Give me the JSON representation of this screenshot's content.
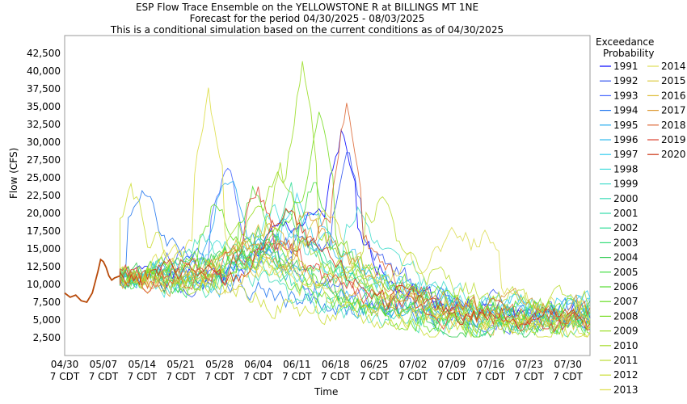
{
  "chart_data": {
    "type": "line",
    "title": "ESP Flow Trace Ensemble on the YELLOWSTONE R at BILLINGS MT 1NE",
    "subtitle1": "Forecast for the period 04/30/2025 - 08/03/2025",
    "subtitle2": "This is a conditional simulation based on the current conditions as of 04/30/2025",
    "xlabel": "Time",
    "ylabel": "Flow (CFS)",
    "ylim": [
      0,
      45000
    ],
    "yticks": [
      "2,500",
      "5,000",
      "7,500",
      "10,000",
      "12,500",
      "15,000",
      "17,500",
      "20,000",
      "22,500",
      "25,000",
      "27,500",
      "30,000",
      "32,500",
      "35,000",
      "37,500",
      "40,000",
      "42,500"
    ],
    "xticks": [
      {
        "d": "04/30",
        "t": "7 CDT"
      },
      {
        "d": "05/07",
        "t": "7 CDT"
      },
      {
        "d": "05/14",
        "t": "7 CDT"
      },
      {
        "d": "05/21",
        "t": "7 CDT"
      },
      {
        "d": "05/28",
        "t": "7 CDT"
      },
      {
        "d": "06/04",
        "t": "7 CDT"
      },
      {
        "d": "06/11",
        "t": "7 CDT"
      },
      {
        "d": "06/18",
        "t": "7 CDT"
      },
      {
        "d": "06/25",
        "t": "7 CDT"
      },
      {
        "d": "07/02",
        "t": "7 CDT"
      },
      {
        "d": "07/09",
        "t": "7 CDT"
      },
      {
        "d": "07/16",
        "t": "7 CDT"
      },
      {
        "d": "07/23",
        "t": "7 CDT"
      },
      {
        "d": "07/30",
        "t": "7 CDT"
      }
    ],
    "grid": true,
    "legend_title": [
      "Exceedance",
      "Probability"
    ],
    "legend_placement": "right",
    "observed": {
      "days": [
        0,
        1,
        2,
        3,
        4,
        5,
        6,
        6.5,
        7,
        7.5,
        8,
        8.5,
        9,
        10
      ],
      "values": [
        8800,
        8200,
        8500,
        7700,
        7500,
        8800,
        11800,
        13500,
        13200,
        12400,
        11200,
        10600,
        10900,
        11200
      ]
    },
    "series": [
      {
        "name": "1991",
        "color": "#0000ff",
        "peak_day": 50,
        "peak": 31000,
        "base": 5500,
        "seed": 1
      },
      {
        "name": "1992",
        "color": "#3355ee",
        "peak_day": 51,
        "peak": 29000,
        "base": 6000,
        "seed": 2
      },
      {
        "name": "1993",
        "color": "#4466ff",
        "peak_day": 29,
        "peak": 27500,
        "base": 5200,
        "seed": 3
      },
      {
        "name": "1994",
        "color": "#2277ee",
        "peak_day": 14,
        "peak": 24000,
        "base": 4800,
        "seed": 4
      },
      {
        "name": "1995",
        "color": "#22aaee",
        "peak_day": 30,
        "peak": 25500,
        "base": 5000,
        "seed": 5
      },
      {
        "name": "1996",
        "color": "#33bbee",
        "peak_day": 44,
        "peak": 21500,
        "base": 6500,
        "seed": 6
      },
      {
        "name": "1997",
        "color": "#33ccee",
        "peak_day": 42,
        "peak": 22000,
        "base": 7000,
        "seed": 7
      },
      {
        "name": "1998",
        "color": "#44dddd",
        "peak_day": 38,
        "peak": 20500,
        "base": 6200,
        "seed": 8
      },
      {
        "name": "1999",
        "color": "#44ddcc",
        "peak_day": 53,
        "peak": 21000,
        "base": 6800,
        "seed": 9
      },
      {
        "name": "2000",
        "color": "#44ddbb",
        "peak_day": 24,
        "peak": 16500,
        "base": 4500,
        "seed": 10
      },
      {
        "name": "2001",
        "color": "#33ddaa",
        "peak_day": 33,
        "peak": 15000,
        "base": 4000,
        "seed": 11
      },
      {
        "name": "2002",
        "color": "#33dd99",
        "peak_day": 41,
        "peak": 22500,
        "base": 5200,
        "seed": 12
      },
      {
        "name": "2003",
        "color": "#33dd77",
        "peak_day": 40,
        "peak": 19500,
        "base": 4800,
        "seed": 13
      },
      {
        "name": "2004",
        "color": "#33cc55",
        "peak_day": 36,
        "peak": 17000,
        "base": 3500,
        "seed": 14
      },
      {
        "name": "2005",
        "color": "#44dd44",
        "peak_day": 45,
        "peak": 24500,
        "base": 5600,
        "seed": 15
      },
      {
        "name": "2006",
        "color": "#55dd33",
        "peak_day": 34,
        "peak": 23500,
        "base": 4200,
        "seed": 16
      },
      {
        "name": "2007",
        "color": "#66dd22",
        "peak_day": 27,
        "peak": 21500,
        "base": 3800,
        "seed": 17
      },
      {
        "name": "2008",
        "color": "#77dd22",
        "peak_day": 46,
        "peak": 33000,
        "base": 6400,
        "seed": 18
      },
      {
        "name": "2009",
        "color": "#99dd22",
        "peak_day": 43,
        "peak": 41500,
        "base": 5800,
        "seed": 19
      },
      {
        "name": "2010",
        "color": "#aadd33",
        "peak_day": 39,
        "peak": 26000,
        "base": 5000,
        "seed": 20
      },
      {
        "name": "2011",
        "color": "#bbdd33",
        "peak_day": 57,
        "peak": 22000,
        "base": 7500,
        "seed": 21
      },
      {
        "name": "2012",
        "color": "#ccdd33",
        "peak_day": 12,
        "peak": 24500,
        "base": 3200,
        "seed": 22
      },
      {
        "name": "2013",
        "color": "#dddd44",
        "peak_day": 26,
        "peak": 37000,
        "base": 4500,
        "seed": 23
      },
      {
        "name": "2014",
        "color": "#dddd55",
        "peak_day": 76,
        "peak": 16500,
        "base": 6000,
        "seed": 24
      },
      {
        "name": "2015",
        "color": "#ddcc44",
        "peak_day": 47,
        "peak": 19500,
        "base": 4800,
        "seed": 25
      },
      {
        "name": "2016",
        "color": "#ddbb33",
        "peak_day": 37,
        "peak": 18500,
        "base": 4200,
        "seed": 26
      },
      {
        "name": "2017",
        "color": "#dd9933",
        "peak_day": 44,
        "peak": 20000,
        "base": 6100,
        "seed": 27
      },
      {
        "name": "2018",
        "color": "#dd6633",
        "peak_day": 51,
        "peak": 35500,
        "base": 5300,
        "seed": 28
      },
      {
        "name": "2019",
        "color": "#dd4433",
        "peak_day": 35,
        "peak": 24000,
        "base": 4400,
        "seed": 29
      },
      {
        "name": "2020",
        "color": "#cc3311",
        "peak_day": 40,
        "peak": 21000,
        "base": 5000,
        "seed": 30
      }
    ]
  }
}
